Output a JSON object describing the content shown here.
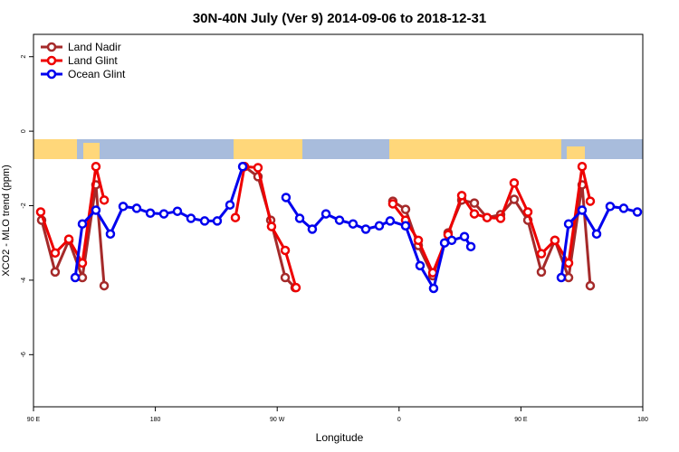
{
  "chart_data": {
    "type": "line",
    "title": "30N-40N July (Ver 9)   2014-09-06 to 2018-12-31",
    "x_label": "Longitude",
    "y_label": "XCO2 - MLO trend (ppm)",
    "xlim": [
      90,
      540
    ],
    "xticks": [
      {
        "value": 90,
        "label": "90 E"
      },
      180,
      {
        "value": 270,
        "label": "90 W"
      },
      {
        "value": 360,
        "label": "0"
      },
      {
        "value": 450,
        "label": "90 E"
      },
      {
        "value": 540,
        "label": "180"
      }
    ],
    "ylim": [
      -7.4,
      2.6
    ],
    "yticks": [
      2,
      0,
      -2,
      -4,
      -6
    ],
    "legend": "top-left",
    "series": [
      {
        "name": "Land Nadir",
        "color": "#a52a2a",
        "x": [
          96.0,
          106.0,
          116.1,
          126.1,
          136.1,
          142.2,
          null,
          245.8,
          255.8,
          265.2,
          275.9,
          283.2,
          null,
          355.4,
          364.8,
          374.2,
          384.9,
          396.2,
          406.3,
          415.6,
          425.0,
          435.0,
          445.0,
          455.1,
          465.1,
          475.1,
          485.2,
          495.2,
          501.2
        ],
        "values": [
          -2.39,
          -3.78,
          -2.93,
          -3.93,
          -1.44,
          -4.15,
          null,
          -0.95,
          -1.22,
          -2.39,
          -3.93,
          -4.2,
          null,
          -1.88,
          -2.1,
          -3.07,
          -3.88,
          -2.73,
          -1.85,
          -1.93,
          -2.32,
          -2.24,
          -1.83,
          -2.39,
          -3.78,
          -2.93,
          -3.93,
          -1.44,
          -4.15
        ]
      },
      {
        "name": "Land Glint",
        "color": "#ee0000",
        "x": [
          95.3,
          106.0,
          116.1,
          126.1,
          136.1,
          142.2,
          null,
          239.1,
          245.8,
          255.8,
          265.8,
          275.9,
          283.9,
          null,
          355.4,
          364.8,
          374.2,
          384.9,
          396.2,
          406.3,
          415.6,
          425.0,
          435.0,
          445.0,
          455.1,
          465.1,
          475.1,
          485.2,
          495.2,
          501.2
        ],
        "values": [
          -2.17,
          -3.27,
          -2.9,
          -3.54,
          -0.95,
          -1.85,
          null,
          -2.32,
          -0.95,
          -0.98,
          -2.56,
          -3.2,
          -4.2,
          null,
          -1.95,
          -2.39,
          -2.93,
          -3.8,
          -2.78,
          -1.73,
          -2.22,
          -2.32,
          -2.34,
          -1.39,
          -2.17,
          -3.29,
          -2.93,
          -3.54,
          -0.95,
          -1.88
        ]
      },
      {
        "name": "Ocean Glint",
        "color": "#0000ee",
        "x": [
          120.8,
          126.1,
          136.1,
          146.8,
          156.2,
          166.2,
          176.3,
          186.3,
          196.3,
          206.3,
          216.4,
          225.7,
          235.1,
          244.5,
          null,
          276.5,
          286.6,
          295.9,
          306.0,
          316.0,
          326.0,
          335.4,
          345.4,
          353.4,
          364.8,
          375.5,
          385.5,
          393.6,
          398.9,
          408.3,
          413.0,
          null,
          479.8,
          485.2,
          495.2,
          505.9,
          515.9,
          525.9,
          536.0
        ],
        "values": [
          -3.93,
          -2.49,
          -2.12,
          -2.76,
          -2.02,
          -2.07,
          -2.2,
          -2.22,
          -2.15,
          -2.34,
          -2.41,
          -2.41,
          -1.98,
          -0.95,
          null,
          -1.78,
          -2.34,
          -2.63,
          -2.22,
          -2.39,
          -2.49,
          -2.63,
          -2.54,
          -2.41,
          -2.54,
          -3.61,
          -4.22,
          -3.0,
          -2.93,
          -2.83,
          -3.1,
          null,
          -3.93,
          -2.49,
          -2.12,
          -2.76,
          -2.02,
          -2.07,
          -2.17
        ]
      }
    ]
  }
}
